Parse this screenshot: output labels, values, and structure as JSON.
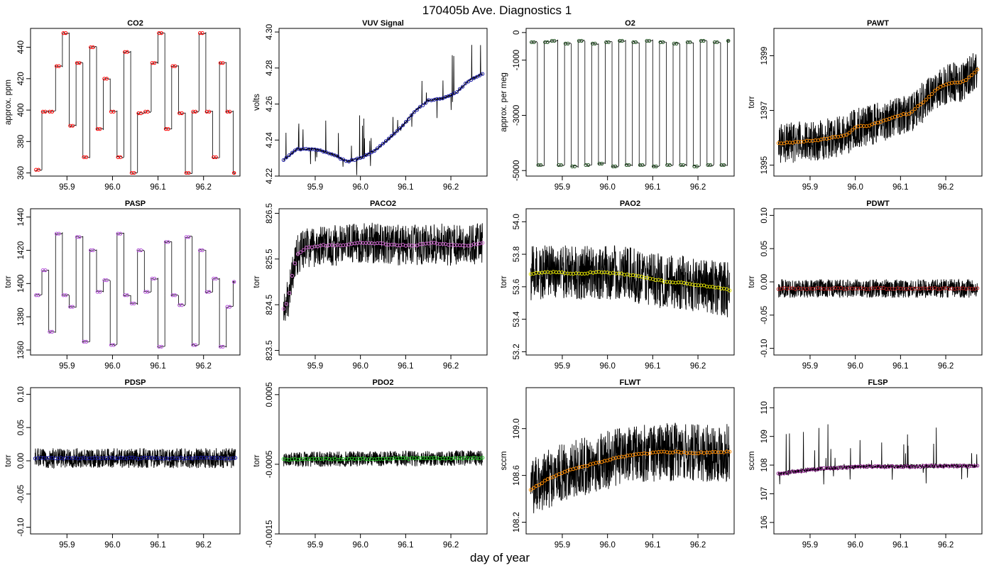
{
  "figure": {
    "title": "170405b   Ave. Diagnostics 1",
    "xlabel": "day of year"
  },
  "chart_data": [
    {
      "type": "line",
      "title": "CO2",
      "ylabel": "approx. ppm",
      "xlim": [
        95.82,
        96.28
      ],
      "ylim": [
        358,
        452
      ],
      "xticks": [
        "95.9",
        "96.0",
        "96.1",
        "96.2"
      ],
      "yticks": [
        "360",
        "380",
        "400",
        "420",
        "440"
      ],
      "ytick_values": [
        360,
        380,
        400,
        420,
        440
      ],
      "marker_color": "#ff0000",
      "trace_pattern": "square_steps",
      "levels": [
        360,
        370,
        388,
        399,
        428,
        438,
        449
      ],
      "series": [
        {
          "name": "",
          "x": [
            95.83,
            95.845,
            95.86,
            95.875,
            95.89,
            95.905,
            95.92,
            95.935,
            95.95,
            95.965,
            95.98,
            95.995,
            96.01,
            96.025,
            96.04,
            96.055,
            96.07,
            96.085,
            96.1,
            96.115,
            96.13,
            96.145,
            96.16,
            96.175,
            96.19,
            96.205,
            96.22,
            96.235,
            96.25,
            96.265
          ],
          "y": [
            362,
            399,
            399,
            428,
            449,
            390,
            430,
            370,
            440,
            388,
            420,
            399,
            370,
            437,
            360,
            398,
            399,
            430,
            449,
            388,
            428,
            398,
            360,
            399,
            449,
            399,
            370,
            430,
            399,
            360
          ]
        }
      ]
    },
    {
      "type": "line",
      "title": "VUV Signal",
      "ylabel": "volts",
      "xlim": [
        95.82,
        96.28
      ],
      "ylim": [
        4.22,
        4.302
      ],
      "xticks": [
        "95.9",
        "96.0",
        "96.1",
        "96.2"
      ],
      "yticks": [
        "4.22",
        "4.24",
        "4.26",
        "4.28",
        "4.30"
      ],
      "ytick_values": [
        4.22,
        4.24,
        4.26,
        4.28,
        4.3
      ],
      "marker_color": "#1a1aa6",
      "trace_pattern": "baseline_with_spikes",
      "series": [
        {
          "name": "",
          "x": [
            95.83,
            95.86,
            95.9,
            95.94,
            95.97,
            96.0,
            96.03,
            96.06,
            96.09,
            96.12,
            96.15,
            96.18,
            96.21,
            96.24,
            96.27
          ],
          "y": [
            4.229,
            4.235,
            4.235,
            4.232,
            4.228,
            4.23,
            4.234,
            4.24,
            4.247,
            4.256,
            4.262,
            4.263,
            4.266,
            4.273,
            4.277
          ]
        }
      ]
    },
    {
      "type": "line",
      "title": "O2",
      "ylabel": "approx. per meg",
      "xlim": [
        95.82,
        96.28
      ],
      "ylim": [
        -5200,
        150
      ],
      "xticks": [
        "95.9",
        "96.0",
        "96.1",
        "96.2"
      ],
      "yticks": [
        "0",
        "-1000",
        "-3000",
        "-5000"
      ],
      "ytick_values": [
        0,
        -1000,
        -3000,
        -5000
      ],
      "marker_color": "#1f4f1f",
      "trace_pattern": "square_steps",
      "levels": [
        -4900,
        -4750,
        -400,
        -250
      ],
      "series": [
        {
          "name": "",
          "x": [
            95.83,
            95.845,
            95.86,
            95.875,
            95.89,
            95.905,
            95.92,
            95.935,
            95.95,
            95.965,
            95.98,
            95.995,
            96.01,
            96.025,
            96.04,
            96.055,
            96.07,
            96.085,
            96.1,
            96.115,
            96.13,
            96.145,
            96.16,
            96.175,
            96.19,
            96.205,
            96.22,
            96.235,
            96.25,
            96.265
          ],
          "y": [
            -350,
            -4800,
            -350,
            -300,
            -4800,
            -400,
            -4850,
            -300,
            -4800,
            -400,
            -4750,
            -350,
            -4850,
            -300,
            -4800,
            -350,
            -4800,
            -300,
            -4850,
            -350,
            -4800,
            -400,
            -4800,
            -350,
            -4850,
            -300,
            -4800,
            -350,
            -4800,
            -300
          ]
        }
      ]
    },
    {
      "type": "line",
      "title": "PAWT",
      "ylabel": "torr",
      "xlim": [
        95.82,
        96.28
      ],
      "ylim": [
        1394.6,
        1400
      ],
      "xticks": [
        "95.9",
        "96.0",
        "96.1",
        "96.2"
      ],
      "yticks": [
        "1395",
        "1397",
        "1399"
      ],
      "ytick_values": [
        1395,
        1397,
        1399
      ],
      "marker_color": "#ff8c00",
      "trace_pattern": "noise_band",
      "noise": 0.75,
      "series": [
        {
          "name": "",
          "x": [
            95.83,
            95.88,
            95.93,
            95.98,
            96.0,
            96.03,
            96.06,
            96.09,
            96.12,
            96.15,
            96.18,
            96.21,
            96.24,
            96.27
          ],
          "y": [
            1395.8,
            1395.85,
            1395.95,
            1396.1,
            1396.4,
            1396.45,
            1396.6,
            1396.8,
            1396.9,
            1397.3,
            1397.8,
            1398.0,
            1398.05,
            1398.5
          ]
        }
      ]
    },
    {
      "type": "line",
      "title": "PASP",
      "ylabel": "torr",
      "xlim": [
        95.82,
        96.28
      ],
      "ylim": [
        1357,
        1445
      ],
      "xticks": [
        "95.9",
        "96.0",
        "96.1",
        "96.2"
      ],
      "yticks": [
        "1360",
        "1380",
        "1400",
        "1420",
        "1440"
      ],
      "ytick_values": [
        1360,
        1380,
        1400,
        1420,
        1440
      ],
      "marker_color": "#b04dd6",
      "trace_pattern": "square_steps",
      "levels": [
        1362,
        1372,
        1386,
        1393,
        1400,
        1407,
        1420,
        1428,
        1438
      ],
      "series": [
        {
          "name": "",
          "x": [
            95.83,
            95.845,
            95.86,
            95.875,
            95.89,
            95.905,
            95.92,
            95.935,
            95.95,
            95.965,
            95.98,
            95.995,
            96.01,
            96.025,
            96.04,
            96.055,
            96.07,
            96.085,
            96.1,
            96.115,
            96.13,
            96.145,
            96.16,
            96.175,
            96.19,
            96.205,
            96.22,
            96.235,
            96.25,
            96.265
          ],
          "y": [
            1393,
            1408,
            1371,
            1430,
            1393,
            1386,
            1428,
            1365,
            1420,
            1395,
            1402,
            1363,
            1430,
            1393,
            1388,
            1420,
            1395,
            1403,
            1362,
            1425,
            1393,
            1387,
            1428,
            1363,
            1420,
            1395,
            1403,
            1362,
            1386,
            1401
          ]
        }
      ]
    },
    {
      "type": "line",
      "title": "PACO2",
      "ylabel": "torr",
      "xlim": [
        95.82,
        96.28
      ],
      "ylim": [
        823.4,
        826.6
      ],
      "xticks": [
        "95.9",
        "96.0",
        "96.1",
        "96.2"
      ],
      "yticks": [
        "823.5",
        "824.5",
        "825.5",
        "826.5"
      ],
      "ytick_values": [
        823.5,
        824.5,
        825.5,
        826.5
      ],
      "marker_color": "#d66bd6",
      "trace_pattern": "noise_band",
      "noise": 0.45,
      "series": [
        {
          "name": "",
          "x": [
            95.83,
            95.84,
            95.85,
            95.86,
            95.88,
            95.92,
            95.96,
            96.0,
            96.04,
            96.08,
            96.12,
            96.16,
            96.2,
            96.24,
            96.27
          ],
          "y": [
            824.4,
            824.6,
            825.2,
            825.6,
            825.75,
            825.8,
            825.8,
            825.85,
            825.85,
            825.8,
            825.8,
            825.85,
            825.8,
            825.8,
            825.85
          ]
        }
      ]
    },
    {
      "type": "line",
      "title": "PAO2",
      "ylabel": "torr",
      "xlim": [
        95.82,
        96.28
      ],
      "ylim": [
        53.18,
        54.08
      ],
      "xticks": [
        "95.9",
        "96.0",
        "96.1",
        "96.2"
      ],
      "yticks": [
        "53.2",
        "53.4",
        "53.6",
        "53.8",
        "54.0"
      ],
      "ytick_values": [
        53.2,
        53.4,
        53.6,
        53.8,
        54.0
      ],
      "marker_color": "#e6e600",
      "trace_pattern": "noise_band",
      "noise": 0.17,
      "series": [
        {
          "name": "",
          "x": [
            95.83,
            95.88,
            95.93,
            95.98,
            96.03,
            96.08,
            96.13,
            96.18,
            96.23,
            96.27
          ],
          "y": [
            53.68,
            53.69,
            53.68,
            53.69,
            53.68,
            53.66,
            53.63,
            53.62,
            53.6,
            53.58
          ]
        }
      ]
    },
    {
      "type": "line",
      "title": "PDWT",
      "ylabel": "torr",
      "xlim": [
        95.82,
        96.28
      ],
      "ylim": [
        -0.11,
        0.11
      ],
      "xticks": [
        "95.9",
        "96.0",
        "96.1",
        "96.2"
      ],
      "yticks": [
        "-0.10",
        "-0.05",
        "0.00",
        "0.05",
        "0.10"
      ],
      "ytick_values": [
        -0.1,
        -0.05,
        0,
        0.05,
        0.1
      ],
      "marker_color": "#b22222",
      "trace_pattern": "noise_band",
      "noise": 0.014,
      "series": [
        {
          "name": "",
          "x": [
            95.83,
            96.27
          ],
          "y": [
            -0.01,
            -0.01
          ]
        }
      ]
    },
    {
      "type": "line",
      "title": "PDSP",
      "ylabel": "torr",
      "xlim": [
        95.82,
        96.28
      ],
      "ylim": [
        -0.11,
        0.11
      ],
      "xticks": [
        "95.9",
        "96.0",
        "96.1",
        "96.2"
      ],
      "yticks": [
        "-0.10",
        "-0.05",
        "0.00",
        "0.05",
        "0.10"
      ],
      "ytick_values": [
        -0.1,
        -0.05,
        0,
        0.05,
        0.1
      ],
      "marker_color": "#1a1aa6",
      "trace_pattern": "noise_band",
      "noise": 0.015,
      "series": [
        {
          "name": "",
          "x": [
            95.83,
            96.27
          ],
          "y": [
            0.004,
            0.004
          ]
        }
      ]
    },
    {
      "type": "line",
      "title": "PDO2",
      "ylabel": "torr",
      "xlim": [
        95.82,
        96.28
      ],
      "ylim": [
        -0.0015,
        0.0006
      ],
      "xticks": [
        "95.9",
        "96.0",
        "96.1",
        "96.2"
      ],
      "yticks": [
        "-0.0015",
        "-0.0005",
        "0.0005"
      ],
      "ytick_values": [
        -0.0015,
        -0.0005,
        0.0005
      ],
      "marker_color": "#22c922",
      "trace_pattern": "noise_band",
      "noise": 0.00011,
      "series": [
        {
          "name": "",
          "x": [
            95.83,
            96.27
          ],
          "y": [
            -0.00043,
            -0.00041
          ]
        }
      ]
    },
    {
      "type": "line",
      "title": "FLWT",
      "ylabel": "sccm",
      "xlim": [
        95.82,
        96.28
      ],
      "ylim": [
        108.1,
        109.35
      ],
      "xticks": [
        "95.9",
        "96.0",
        "96.1",
        "96.2"
      ],
      "yticks": [
        "108.2",
        "108.6",
        "109.0"
      ],
      "ytick_values": [
        108.2,
        108.6,
        109.0
      ],
      "marker_color": "#ff8c00",
      "trace_pattern": "noise_band",
      "noise": 0.25,
      "series": [
        {
          "name": "",
          "x": [
            95.83,
            95.87,
            95.91,
            95.95,
            95.99,
            96.03,
            96.07,
            96.11,
            96.15,
            96.19,
            96.23,
            96.27
          ],
          "y": [
            108.48,
            108.57,
            108.64,
            108.68,
            108.72,
            108.76,
            108.78,
            108.8,
            108.8,
            108.79,
            108.8,
            108.8
          ]
        }
      ]
    },
    {
      "type": "line",
      "title": "FLSP",
      "ylabel": "sccm",
      "xlim": [
        95.82,
        96.28
      ],
      "ylim": [
        105.6,
        110.7
      ],
      "xticks": [
        "95.9",
        "96.0",
        "96.1",
        "96.2"
      ],
      "yticks": [
        "106",
        "107",
        "108",
        "109",
        "110"
      ],
      "ytick_values": [
        106,
        107,
        108,
        109,
        110
      ],
      "marker_color": "#8b1a8b",
      "trace_pattern": "baseline_with_spikes",
      "noise": 0.15,
      "series": [
        {
          "name": "",
          "x": [
            95.83,
            95.88,
            95.93,
            95.98,
            96.03,
            96.08,
            96.13,
            96.18,
            96.23,
            96.27
          ],
          "y": [
            107.7,
            107.8,
            107.88,
            107.92,
            107.95,
            107.95,
            107.95,
            107.97,
            107.97,
            107.97
          ]
        }
      ]
    }
  ]
}
